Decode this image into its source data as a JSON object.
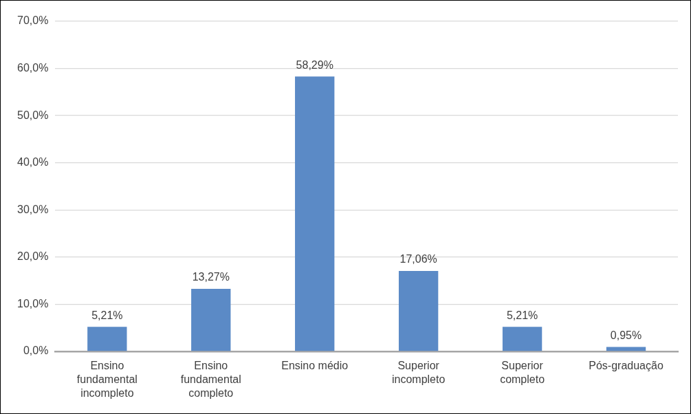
{
  "chart_data": {
    "type": "bar",
    "categories": [
      "Ensino fundamental incompleto",
      "Ensino fundamental completo",
      "Ensino médio",
      "Superior incompleto",
      "Superior completo",
      "Pós-graduação"
    ],
    "values": [
      5.21,
      13.27,
      58.29,
      17.06,
      5.21,
      0.95
    ],
    "value_labels": [
      "5,21%",
      "13,27%",
      "58,29%",
      "17,06%",
      "5,21%",
      "0,95%"
    ],
    "color": "#5b8ac6",
    "ylim": [
      0,
      70
    ],
    "yticks": [
      {
        "value": 0,
        "label": "0,0%"
      },
      {
        "value": 10,
        "label": "10,0%"
      },
      {
        "value": 20,
        "label": "20,0%"
      },
      {
        "value": 30,
        "label": "30,0%"
      },
      {
        "value": 40,
        "label": "40,0%"
      },
      {
        "value": 50,
        "label": "50,0%"
      },
      {
        "value": 60,
        "label": "60,0%"
      },
      {
        "value": 70,
        "label": "70,0%"
      }
    ],
    "grid": "y"
  }
}
